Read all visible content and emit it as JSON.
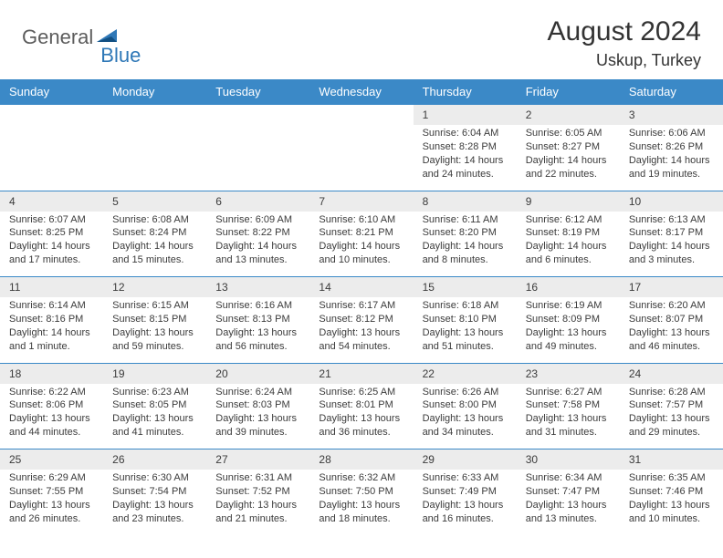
{
  "brand": {
    "part1": "General",
    "part2": "Blue"
  },
  "title": "August 2024",
  "location": "Uskup, Turkey",
  "colors": {
    "header_bg": "#3b89c7",
    "header_text": "#ffffff",
    "daynum_bg": "#ececec",
    "rule": "#3b89c7",
    "text": "#3b3b3b",
    "brand_gray": "#5c5c5c",
    "brand_blue": "#2f78b7"
  },
  "weekdays": [
    "Sunday",
    "Monday",
    "Tuesday",
    "Wednesday",
    "Thursday",
    "Friday",
    "Saturday"
  ],
  "weeks": [
    {
      "nums": [
        "",
        "",
        "",
        "",
        "1",
        "2",
        "3"
      ],
      "details": [
        "",
        "",
        "",
        "",
        "Sunrise: 6:04 AM\nSunset: 8:28 PM\nDaylight: 14 hours and 24 minutes.",
        "Sunrise: 6:05 AM\nSunset: 8:27 PM\nDaylight: 14 hours and 22 minutes.",
        "Sunrise: 6:06 AM\nSunset: 8:26 PM\nDaylight: 14 hours and 19 minutes."
      ]
    },
    {
      "nums": [
        "4",
        "5",
        "6",
        "7",
        "8",
        "9",
        "10"
      ],
      "details": [
        "Sunrise: 6:07 AM\nSunset: 8:25 PM\nDaylight: 14 hours and 17 minutes.",
        "Sunrise: 6:08 AM\nSunset: 8:24 PM\nDaylight: 14 hours and 15 minutes.",
        "Sunrise: 6:09 AM\nSunset: 8:22 PM\nDaylight: 14 hours and 13 minutes.",
        "Sunrise: 6:10 AM\nSunset: 8:21 PM\nDaylight: 14 hours and 10 minutes.",
        "Sunrise: 6:11 AM\nSunset: 8:20 PM\nDaylight: 14 hours and 8 minutes.",
        "Sunrise: 6:12 AM\nSunset: 8:19 PM\nDaylight: 14 hours and 6 minutes.",
        "Sunrise: 6:13 AM\nSunset: 8:17 PM\nDaylight: 14 hours and 3 minutes."
      ]
    },
    {
      "nums": [
        "11",
        "12",
        "13",
        "14",
        "15",
        "16",
        "17"
      ],
      "details": [
        "Sunrise: 6:14 AM\nSunset: 8:16 PM\nDaylight: 14 hours and 1 minute.",
        "Sunrise: 6:15 AM\nSunset: 8:15 PM\nDaylight: 13 hours and 59 minutes.",
        "Sunrise: 6:16 AM\nSunset: 8:13 PM\nDaylight: 13 hours and 56 minutes.",
        "Sunrise: 6:17 AM\nSunset: 8:12 PM\nDaylight: 13 hours and 54 minutes.",
        "Sunrise: 6:18 AM\nSunset: 8:10 PM\nDaylight: 13 hours and 51 minutes.",
        "Sunrise: 6:19 AM\nSunset: 8:09 PM\nDaylight: 13 hours and 49 minutes.",
        "Sunrise: 6:20 AM\nSunset: 8:07 PM\nDaylight: 13 hours and 46 minutes."
      ]
    },
    {
      "nums": [
        "18",
        "19",
        "20",
        "21",
        "22",
        "23",
        "24"
      ],
      "details": [
        "Sunrise: 6:22 AM\nSunset: 8:06 PM\nDaylight: 13 hours and 44 minutes.",
        "Sunrise: 6:23 AM\nSunset: 8:05 PM\nDaylight: 13 hours and 41 minutes.",
        "Sunrise: 6:24 AM\nSunset: 8:03 PM\nDaylight: 13 hours and 39 minutes.",
        "Sunrise: 6:25 AM\nSunset: 8:01 PM\nDaylight: 13 hours and 36 minutes.",
        "Sunrise: 6:26 AM\nSunset: 8:00 PM\nDaylight: 13 hours and 34 minutes.",
        "Sunrise: 6:27 AM\nSunset: 7:58 PM\nDaylight: 13 hours and 31 minutes.",
        "Sunrise: 6:28 AM\nSunset: 7:57 PM\nDaylight: 13 hours and 29 minutes."
      ]
    },
    {
      "nums": [
        "25",
        "26",
        "27",
        "28",
        "29",
        "30",
        "31"
      ],
      "details": [
        "Sunrise: 6:29 AM\nSunset: 7:55 PM\nDaylight: 13 hours and 26 minutes.",
        "Sunrise: 6:30 AM\nSunset: 7:54 PM\nDaylight: 13 hours and 23 minutes.",
        "Sunrise: 6:31 AM\nSunset: 7:52 PM\nDaylight: 13 hours and 21 minutes.",
        "Sunrise: 6:32 AM\nSunset: 7:50 PM\nDaylight: 13 hours and 18 minutes.",
        "Sunrise: 6:33 AM\nSunset: 7:49 PM\nDaylight: 13 hours and 16 minutes.",
        "Sunrise: 6:34 AM\nSunset: 7:47 PM\nDaylight: 13 hours and 13 minutes.",
        "Sunrise: 6:35 AM\nSunset: 7:46 PM\nDaylight: 13 hours and 10 minutes."
      ]
    }
  ]
}
